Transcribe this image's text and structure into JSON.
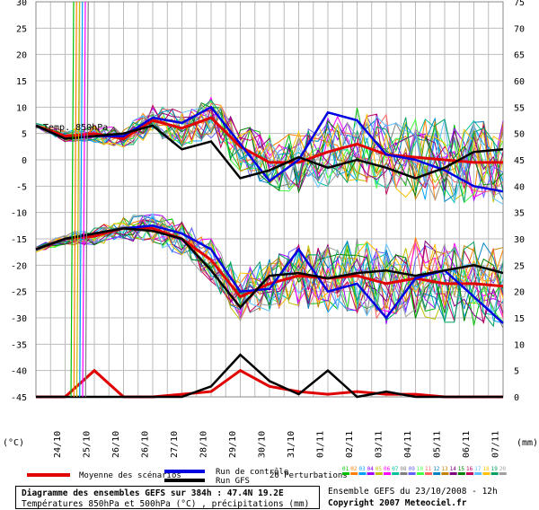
{
  "chart_data": {
    "type": "line",
    "title": "Diagramme des ensembles GEFS sur 384h : 47.4N 19.2E",
    "subtitle": "Températures 850hPa et 500hPa (°C) , précipitations (mm)",
    "xlabel": "",
    "ylabel_left": "(°C)",
    "ylabel_right": "(mm)",
    "ylim_left": [
      -45,
      30
    ],
    "ylim_right": [
      0,
      75
    ],
    "yticks_left": [
      30,
      25,
      20,
      15,
      10,
      5,
      0,
      -5,
      -10,
      -15,
      -20,
      -25,
      -30,
      -35,
      -40,
      -45
    ],
    "yticks_right": [
      75,
      70,
      65,
      60,
      55,
      50,
      45,
      40,
      35,
      30,
      25,
      20,
      15,
      10,
      5,
      0
    ],
    "x_ticks": [
      "24/10",
      "25/10",
      "26/10",
      "26/10",
      "27/10",
      "28/10",
      "29/10",
      "30/10",
      "31/10",
      "01/11",
      "02/11",
      "03/11",
      "04/11",
      "05/11",
      "06/11",
      "07/11"
    ],
    "annotation_850": "Temp. 850hPa",
    "x_days": [
      0,
      1,
      2,
      3,
      4,
      5,
      6,
      7,
      8,
      9,
      10,
      11,
      12,
      13,
      14,
      15,
      16
    ],
    "series": [
      {
        "name": "Moyenne des scénarios",
        "color": "#e00000",
        "group": "t850",
        "values": [
          6.5,
          4.5,
          5,
          4,
          7.5,
          6,
          8,
          2.5,
          -0.5,
          -0.5,
          1.5,
          3,
          1,
          0.5,
          0,
          -0.5,
          -0.5
        ]
      },
      {
        "name": "Run de contrôle",
        "color": "#0000e0",
        "group": "t850",
        "values": [
          6.5,
          4,
          4.5,
          4.5,
          8,
          7,
          10,
          3,
          -4,
          0,
          9,
          7.5,
          1,
          0,
          -2,
          -5,
          -6
        ]
      },
      {
        "name": "Run GFS",
        "color": "#000000",
        "group": "t850",
        "values": [
          6.5,
          4,
          4.5,
          5,
          6.5,
          2,
          3.5,
          -3.5,
          -2,
          0.5,
          -1.5,
          0,
          -1.5,
          -3.5,
          -1.5,
          1.5,
          2
        ]
      },
      {
        "name": "Moyenne des scénarios",
        "color": "#e00000",
        "group": "t500",
        "values": [
          -17,
          -15,
          -14.5,
          -13,
          -13,
          -15,
          -19,
          -26,
          -23.5,
          -22,
          -22.5,
          -22,
          -23.5,
          -22.5,
          -23.5,
          -23.5,
          -24
        ]
      },
      {
        "name": "Run de contrôle",
        "color": "#0000e0",
        "group": "t500",
        "values": [
          -17,
          -15,
          -14,
          -13,
          -12.5,
          -14,
          -17,
          -25,
          -24.5,
          -17,
          -25,
          -23.5,
          -30,
          -22.5,
          -21,
          -26,
          -31
        ]
      },
      {
        "name": "Run GFS",
        "color": "#000000",
        "group": "t500",
        "values": [
          -17,
          -15,
          -14,
          -13,
          -13.5,
          -15,
          -21,
          -28,
          -22,
          -21.5,
          -22.5,
          -21.5,
          -21,
          -22,
          -21,
          -20,
          -21.5
        ]
      },
      {
        "name": "Moyenne des scénarios",
        "color": "#e00000",
        "group": "precip",
        "values": [
          0,
          0,
          5,
          0,
          0,
          0.5,
          1,
          5,
          2,
          1,
          0.5,
          1,
          0.5,
          0.5,
          0,
          0,
          0
        ]
      },
      {
        "name": "Run GFS",
        "color": "#000000",
        "group": "precip",
        "values": [
          0,
          0,
          0,
          0,
          0,
          0,
          2,
          8,
          3,
          0.5,
          5,
          0,
          1,
          0,
          0,
          0,
          0
        ]
      }
    ],
    "legend": {
      "mean": "Moyenne des scénarios",
      "control": "Run de contrôle",
      "gfs": "Run GFS",
      "perturb": "20 Perturbations",
      "perturb_codes": [
        "01",
        "02",
        "03",
        "04",
        "05",
        "06",
        "07",
        "08",
        "09",
        "10",
        "11",
        "12",
        "13",
        "14",
        "15",
        "16",
        "17",
        "18",
        "19",
        "20"
      ],
      "perturb_colors": [
        "#00c000",
        "#ff8000",
        "#00a0ff",
        "#a000ff",
        "#c0c000",
        "#ff00ff",
        "#00c0a0",
        "#808080",
        "#6060ff",
        "#40ff40",
        "#ff6060",
        "#0080c0",
        "#c08000",
        "#800080",
        "#008000",
        "#c00060",
        "#60c0ff",
        "#ffc000",
        "#00a060",
        "#a0a0a0"
      ]
    },
    "grid": true
  },
  "footer": {
    "title": "Diagramme des ensembles GEFS sur 384h : 47.4N 19.2E",
    "subtitle": "Températures 850hPa et 500hPa (°C) , précipitations (mm)",
    "run": "Ensemble GEFS du 23/10/2008 - 12h",
    "copyright": "Copyright 2007 Meteociel.fr"
  }
}
